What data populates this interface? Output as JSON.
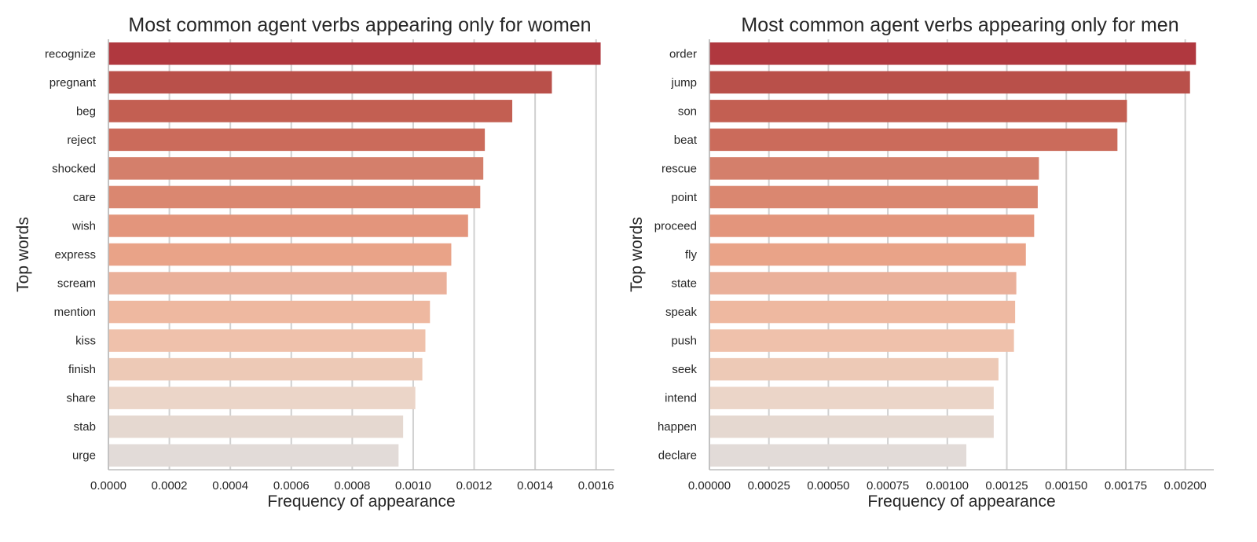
{
  "chart_data": [
    {
      "type": "bar",
      "orientation": "horizontal",
      "title": "Most common agent verbs appearing only for women",
      "xlabel": "Frequency of appearance",
      "ylabel": "Top words",
      "categories": [
        "recognize",
        "pregnant",
        "beg",
        "reject",
        "shocked",
        "care",
        "wish",
        "express",
        "scream",
        "mention",
        "kiss",
        "finish",
        "share",
        "stab",
        "urge"
      ],
      "values": [
        0.001615,
        0.001455,
        0.001325,
        0.001235,
        0.00123,
        0.00122,
        0.00118,
        0.001125,
        0.00111,
        0.001055,
        0.00104,
        0.00103,
        0.001007,
        0.000967,
        0.000952
      ],
      "xlim": [
        0,
        0.00166
      ],
      "xticks": [
        0,
        0.0002,
        0.0004,
        0.0006,
        0.0008,
        0.001,
        0.0012,
        0.0014,
        0.0016
      ],
      "xtick_labels": [
        "0.0000",
        "0.0002",
        "0.0004",
        "0.0006",
        "0.0008",
        "0.0010",
        "0.0012",
        "0.0014",
        "0.0016"
      ],
      "grid": "x"
    },
    {
      "type": "bar",
      "orientation": "horizontal",
      "title": "Most common agent verbs appearing only for men",
      "xlabel": "Frequency of appearance",
      "ylabel": "Top words",
      "categories": [
        "order",
        "jump",
        "son",
        "beat",
        "rescue",
        "point",
        "proceed",
        "fly",
        "state",
        "speak",
        "push",
        "seek",
        "intend",
        "happen",
        "declare"
      ],
      "values": [
        0.002045,
        0.00202,
        0.001755,
        0.001715,
        0.001385,
        0.00138,
        0.001365,
        0.00133,
        0.00129,
        0.001285,
        0.00128,
        0.001215,
        0.001195,
        0.001195,
        0.00108
      ],
      "xlim": [
        0,
        0.00212
      ],
      "xticks": [
        0,
        0.00025,
        0.0005,
        0.00075,
        0.001,
        0.00125,
        0.0015,
        0.00175,
        0.002
      ],
      "xtick_labels": [
        "0.00000",
        "0.00025",
        "0.00050",
        "0.00075",
        "0.00100",
        "0.00125",
        "0.00150",
        "0.00175",
        "0.00200"
      ],
      "grid": "x"
    }
  ],
  "colors": [
    "#b0383f",
    "#b9504a",
    "#c35f52",
    "#cb6b5b",
    "#d47f6b",
    "#da8770",
    "#e3957c",
    "#e9a388",
    "#eab09a",
    "#eeb8a0",
    "#efc1ab",
    "#edc9b6",
    "#ebd5c8",
    "#e5d8d0",
    "#e2dbd8"
  ]
}
